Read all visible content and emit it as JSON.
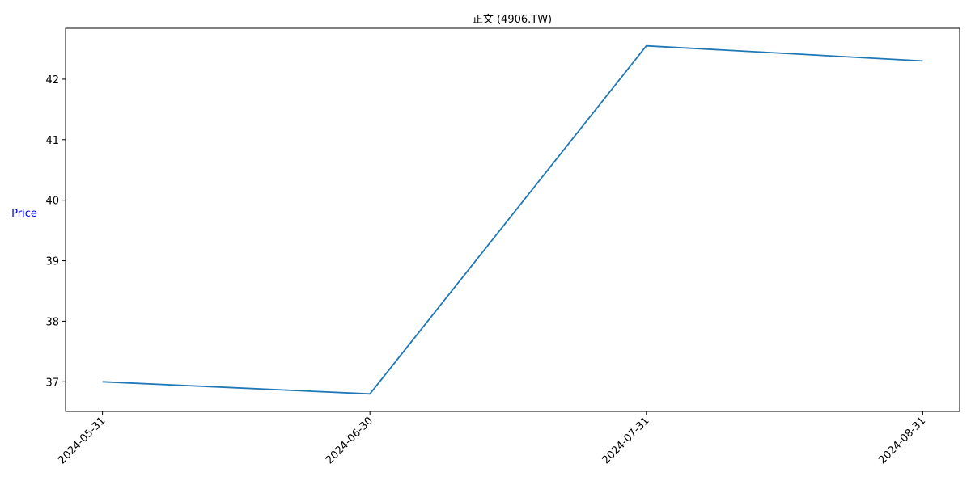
{
  "chart_data": {
    "type": "line",
    "title": "正文 (4906.TW)",
    "xlabel": "",
    "ylabel": "Price",
    "ylabel_color": "#0000ff",
    "x": [
      "2024-05-31",
      "2024-06-30",
      "2024-07-31",
      "2024-08-31"
    ],
    "series": [
      {
        "color": "#1f77b4",
        "values": [
          37.0,
          36.8,
          42.55,
          42.3
        ]
      }
    ],
    "ylim": [
      36.51,
      42.84
    ],
    "yticks": [
      37,
      38,
      39,
      40,
      41,
      42
    ],
    "xticks": [
      "2024-05-31",
      "2024-06-30",
      "2024-07-31",
      "2024-08-31"
    ],
    "grid": false,
    "legend": "none"
  }
}
